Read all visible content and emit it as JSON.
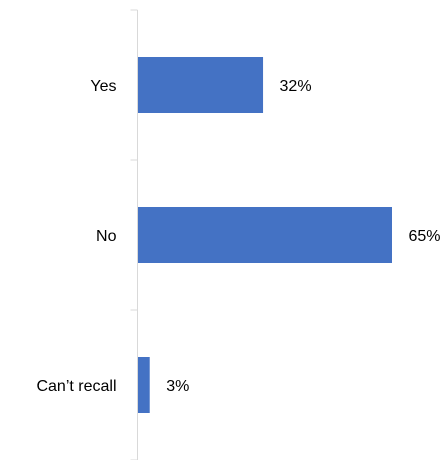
{
  "chart_data": {
    "type": "bar",
    "orientation": "horizontal",
    "categories": [
      "Yes",
      "No",
      "Can’t recall"
    ],
    "values": [
      32,
      65,
      3
    ],
    "value_labels": [
      "32%",
      "65%",
      "3%"
    ],
    "unit": "%",
    "xlim": [
      0,
      65
    ],
    "title": "",
    "xlabel": "",
    "ylabel": "",
    "grid": false,
    "legend": "none",
    "bar_color": "#4472C4",
    "axis_color": "#D9D9D9"
  }
}
